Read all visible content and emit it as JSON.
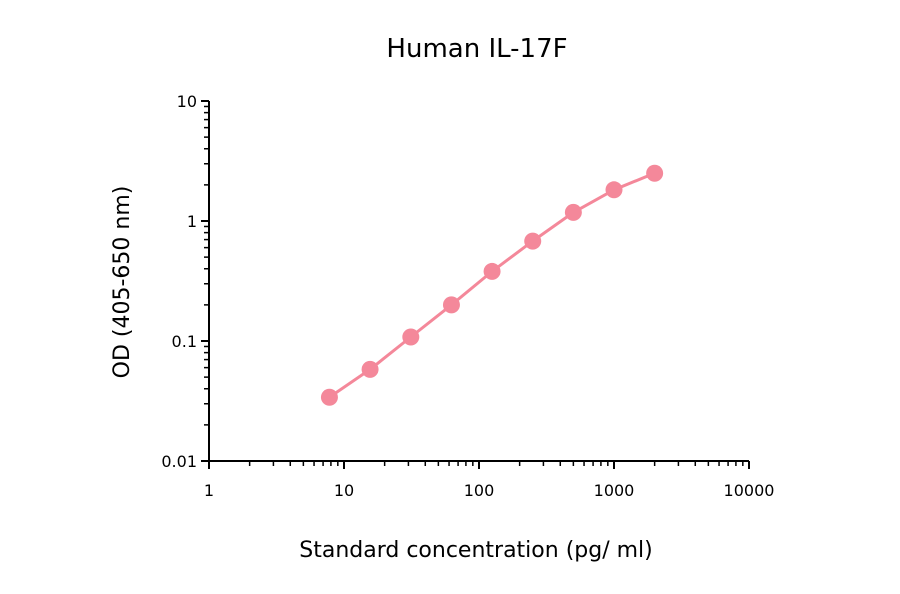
{
  "chart_data": {
    "type": "line",
    "title": "Human IL-17F",
    "xlabel": "Standard concentration (pg/ ml)",
    "ylabel": "OD (405-650 nm)",
    "x_scale": "log",
    "y_scale": "log",
    "xlim": [
      1,
      10000
    ],
    "ylim": [
      0.01,
      10
    ],
    "x_tick_labels": [
      "1",
      "10",
      "100",
      "1000",
      "10000"
    ],
    "x_tick_values": [
      1,
      10,
      100,
      1000,
      10000
    ],
    "y_tick_labels": [
      "0.01",
      "0.1",
      "1",
      "10"
    ],
    "y_tick_values": [
      0.01,
      0.1,
      1,
      10
    ],
    "grid": false,
    "series": [
      {
        "x": [
          7.8,
          15.6,
          31.25,
          62.5,
          125,
          250,
          500,
          1000,
          2000
        ],
        "y": [
          0.034,
          0.058,
          0.108,
          0.2,
          0.38,
          0.68,
          1.18,
          1.82,
          2.5
        ],
        "color": "#f4889a"
      }
    ]
  }
}
